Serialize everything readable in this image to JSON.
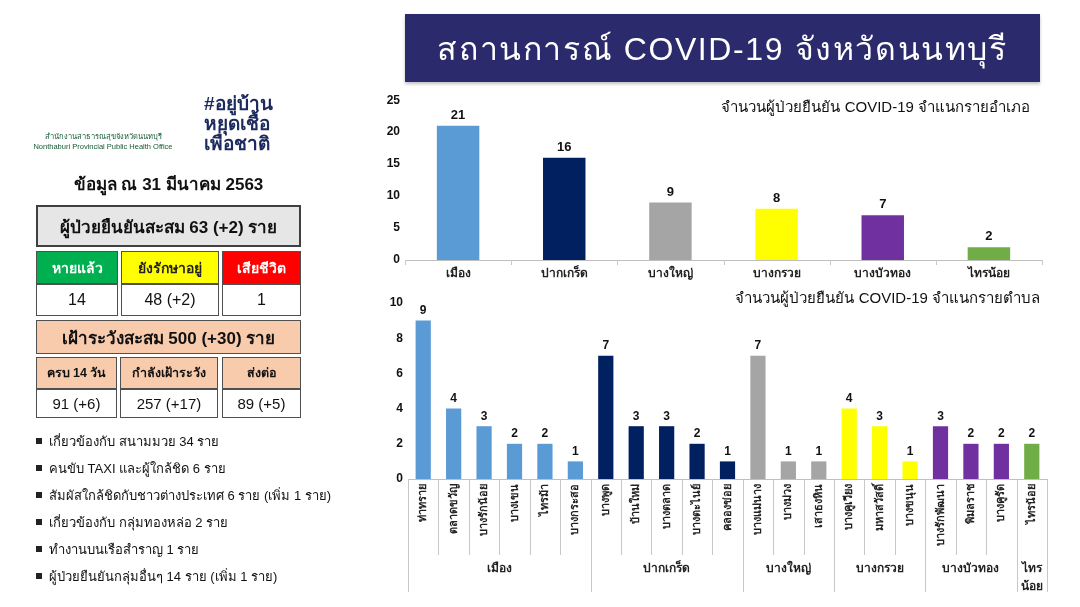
{
  "chart_data": [
    {
      "type": "other",
      "title": "ข้อมูล ณ 31 มีนาคม 2563",
      "annotations": [
        "สำนักงานสาธารณสุขจังหวัดนนทบุรี",
        "Nonthaburi Provincial Public Health Office",
        "#อยู่บ้าน หยุดเชื้อ เพื่อชาติ",
        "ผู้ป่วยยืนยันสะสม 63 (+2) ราย",
        "หายแล้ว",
        "ยังรักษาอยู่",
        "เสียชีวิต",
        "14",
        "48 (+2)",
        "1",
        "เฝ้าระวังสะสม 500 (+30) ราย",
        "ครบ 14 วัน",
        "กำลังเฝ้าระวัง",
        "ส่งต่อ",
        "91 (+6)",
        "257 (+17)",
        "89 (+5)",
        "เกี่ยวข้องกับ สนามมวย 34 ราย",
        "คนขับ TAXI และผู้ใกล้ชิด 6 ราย",
        "สัมผัสใกล้ชิดกับชาวต่างประเทศ 6 ราย (เพิ่ม 1 ราย)",
        "เกี่ยวข้องกับ กลุ่มทองหล่อ 2 ราย",
        "ทำงานบนเรือสำราญ  1 ราย",
        "ผู้ป่วยยืนยันกลุ่มอื่นๆ 14 ราย (เพิ่ม 1 ราย)"
      ]
    },
    {
      "type": "bar",
      "title": "สถานการณ์ COVID-19 จังหวัดนนทบุรี",
      "subtitle": "จำนวนผู้ป่วยยืนยัน COVID-19 จำแนกรายอำเภอ",
      "categories": [
        "เมือง",
        "ปากเกร็ด",
        "บางใหญ่",
        "บางกรวย",
        "บางบัวทอง",
        "ไทรน้อย"
      ],
      "values": [
        21,
        16,
        9,
        8,
        7,
        2
      ],
      "colors": [
        "#5b9bd5",
        "#002060",
        "#a5a5a5",
        "#ffff00",
        "#7030a0",
        "#70ad47"
      ],
      "ylim": [
        0,
        25
      ],
      "yticks": [
        0,
        5,
        10,
        15,
        20,
        25
      ],
      "data_labels": true
    },
    {
      "type": "bar",
      "title": "จำนวนผู้ป่วยยืนยัน COVID-19 จำแนกรายตำบล",
      "categories": [
        "ท่าทราย",
        "ตลาดขวัญ",
        "บางรักน้อย",
        "บางเขน",
        "ไทรม้า",
        "บางกระสอ",
        "บางพูด",
        "บ้านใหม่",
        "บางตลาด",
        "บางตะไนย์",
        "คลองข่อย",
        "บางแม่นาง",
        "บางม่วง",
        "เสาธงหิน",
        "บางคูเวียง",
        "มหาสวัสดิ์",
        "บางขนุน",
        "บางรักพัฒนา",
        "พิมลราช",
        "บางคูรัด",
        "ไทรน้อย"
      ],
      "series": [
        {
          "name": "เมือง",
          "color": "#5b9bd5",
          "values": [
            9,
            4,
            3,
            2,
            2,
            1,
            null,
            null,
            null,
            null,
            null,
            null,
            null,
            null,
            null,
            null,
            null,
            null,
            null,
            null,
            null
          ]
        },
        {
          "name": "ปากเกร็ด",
          "color": "#002060",
          "values": [
            null,
            null,
            null,
            null,
            null,
            null,
            7,
            3,
            3,
            2,
            1,
            null,
            null,
            null,
            null,
            null,
            null,
            null,
            null,
            null,
            null
          ]
        },
        {
          "name": "บางใหญ่",
          "color": "#a5a5a5",
          "values": [
            null,
            null,
            null,
            null,
            null,
            null,
            null,
            null,
            null,
            null,
            null,
            7,
            1,
            1,
            null,
            null,
            null,
            null,
            null,
            null,
            null
          ]
        },
        {
          "name": "บางกรวย",
          "color": "#ffff00",
          "values": [
            null,
            null,
            null,
            null,
            null,
            null,
            null,
            null,
            null,
            null,
            null,
            null,
            null,
            null,
            4,
            3,
            1,
            null,
            null,
            null,
            null
          ]
        },
        {
          "name": "บางบัวทอง",
          "color": "#7030a0",
          "values": [
            null,
            null,
            null,
            null,
            null,
            null,
            null,
            null,
            null,
            null,
            null,
            null,
            null,
            null,
            null,
            null,
            null,
            3,
            2,
            2,
            null
          ]
        },
        {
          "name": "ไทรน้อย",
          "color": "#70ad47",
          "values": [
            null,
            null,
            null,
            null,
            null,
            null,
            null,
            null,
            null,
            null,
            null,
            null,
            null,
            null,
            null,
            null,
            null,
            null,
            null,
            null,
            2
          ]
        }
      ],
      "ylim": [
        0,
        10
      ],
      "yticks": [
        0,
        2,
        4,
        6,
        8,
        10
      ],
      "data_labels": true
    }
  ]
}
